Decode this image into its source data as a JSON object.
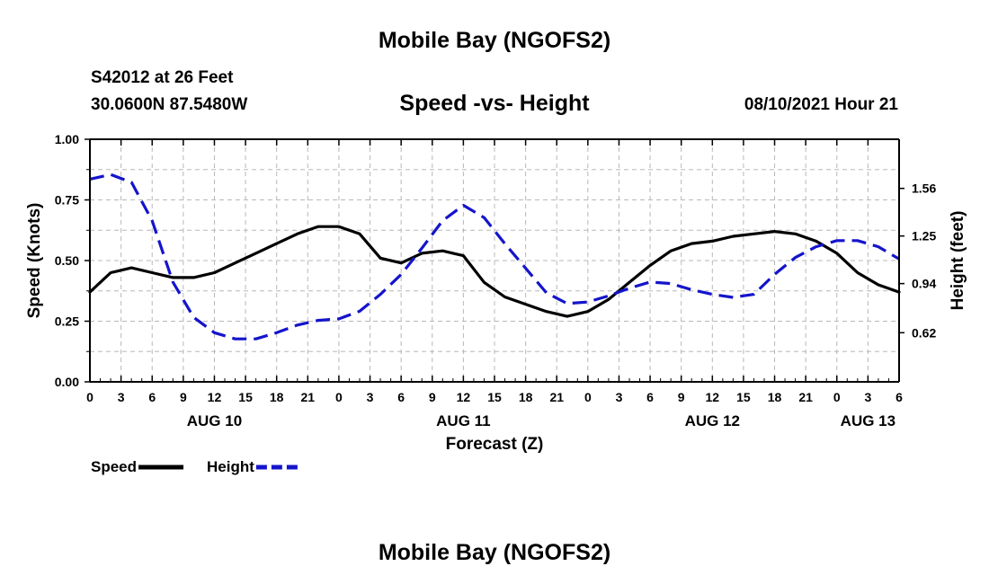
{
  "page": {
    "top_title": "Mobile Bay (NGOFS2)",
    "bottom_title": "Mobile Bay (NGOFS2)",
    "station_line": "S42012 at 26 Feet",
    "coords_line": "30.0600N  87.5480W",
    "plot_title": "Speed -vs- Height",
    "timestamp": "08/10/2021 Hour 21"
  },
  "chart_data": {
    "type": "line",
    "title": "Speed -vs- Height",
    "xlabel": "Forecast (Z)",
    "ylabel": "Speed (Knots)",
    "y2label": "Height (feet)",
    "xlim": [
      0,
      78
    ],
    "ylim": [
      0,
      1.0
    ],
    "y2lim": [
      0.3,
      1.88
    ],
    "x_ticks": [
      0,
      3,
      6,
      9,
      12,
      15,
      18,
      21,
      24,
      27,
      30,
      33,
      36,
      39,
      42,
      45,
      48,
      51,
      54,
      57,
      60,
      63,
      66,
      69,
      72,
      75,
      78
    ],
    "x_tick_labels": [
      "0",
      "3",
      "6",
      "9",
      "12",
      "15",
      "18",
      "21",
      "0",
      "3",
      "6",
      "9",
      "12",
      "15",
      "18",
      "21",
      "0",
      "3",
      "6",
      "9",
      "12",
      "15",
      "18",
      "21",
      "0",
      "3",
      "6"
    ],
    "y_ticks": [
      0.0,
      0.25,
      0.5,
      0.75,
      1.0
    ],
    "y_tick_labels": [
      "0.00",
      "0.25",
      "0.50",
      "0.75",
      "1.00"
    ],
    "y2_ticks": [
      0.62,
      0.94,
      1.25,
      1.56
    ],
    "y2_tick_labels": [
      "0.62",
      "0.94",
      "1.25",
      "1.56"
    ],
    "day_labels": [
      {
        "x": 12,
        "label": "AUG 10"
      },
      {
        "x": 36,
        "label": "AUG 11"
      },
      {
        "x": 60,
        "label": "AUG 12"
      },
      {
        "x": 75,
        "label": "AUG 13"
      }
    ],
    "grid": true,
    "series": [
      {
        "name": "Speed",
        "axis": "left",
        "color": "#000000",
        "dash": "solid",
        "x": [
          0,
          2,
          4,
          6,
          8,
          10,
          12,
          14,
          16,
          18,
          20,
          22,
          24,
          26,
          28,
          30,
          32,
          34,
          36,
          38,
          40,
          42,
          44,
          46,
          48,
          50,
          52,
          54,
          56,
          58,
          60,
          62,
          64,
          66,
          68,
          70,
          72,
          74,
          76,
          78
        ],
        "values": [
          0.37,
          0.45,
          0.47,
          0.45,
          0.43,
          0.43,
          0.45,
          0.49,
          0.53,
          0.57,
          0.61,
          0.64,
          0.64,
          0.61,
          0.51,
          0.49,
          0.53,
          0.54,
          0.52,
          0.41,
          0.35,
          0.32,
          0.29,
          0.27,
          0.29,
          0.34,
          0.41,
          0.48,
          0.54,
          0.57,
          0.58,
          0.6,
          0.61,
          0.62,
          0.61,
          0.58,
          0.53,
          0.45,
          0.4,
          0.37
        ]
      },
      {
        "name": "Height",
        "axis": "right",
        "color": "#1414cc",
        "dash": "dashed",
        "x": [
          0,
          2,
          4,
          6,
          8,
          10,
          12,
          14,
          16,
          18,
          20,
          22,
          24,
          26,
          28,
          30,
          32,
          34,
          36,
          38,
          40,
          42,
          44,
          46,
          48,
          50,
          52,
          54,
          56,
          58,
          60,
          62,
          64,
          66,
          68,
          70,
          72,
          74,
          76,
          78
        ],
        "values": [
          1.62,
          1.65,
          1.6,
          1.35,
          0.95,
          0.72,
          0.62,
          0.58,
          0.58,
          0.62,
          0.67,
          0.7,
          0.71,
          0.76,
          0.87,
          1.0,
          1.17,
          1.35,
          1.45,
          1.37,
          1.2,
          1.04,
          0.88,
          0.81,
          0.82,
          0.86,
          0.91,
          0.95,
          0.94,
          0.9,
          0.87,
          0.85,
          0.87,
          1.0,
          1.11,
          1.18,
          1.22,
          1.22,
          1.18,
          1.1
        ]
      }
    ],
    "legend": [
      {
        "label": "Speed",
        "color": "#000000",
        "dash": "solid"
      },
      {
        "label": "Height",
        "color": "#1414cc",
        "dash": "dashed"
      }
    ]
  }
}
